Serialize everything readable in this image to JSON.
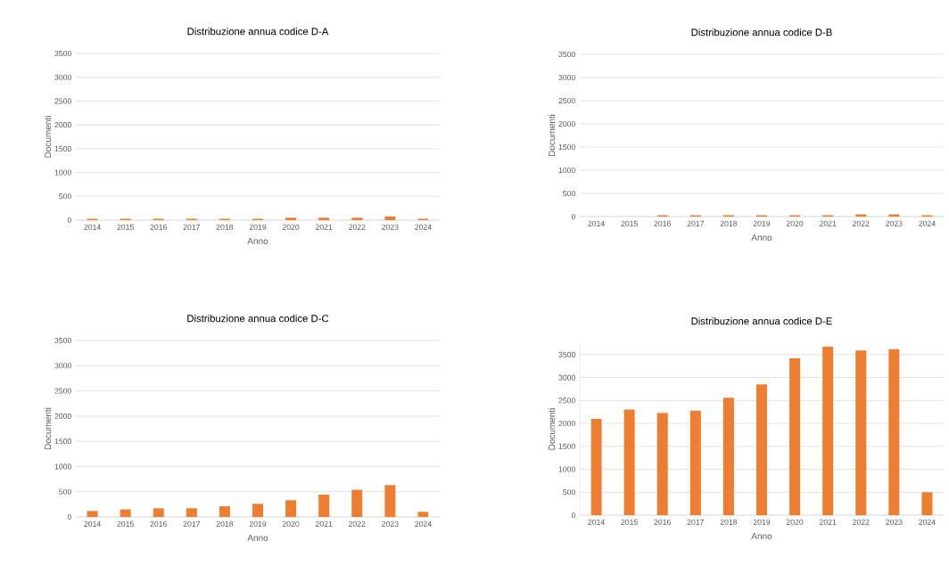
{
  "chart_data": [
    {
      "type": "bar",
      "title": "Distribuzione annua codice D-A",
      "xlabel": "Anno",
      "ylabel": "Documenti",
      "categories": [
        "2014",
        "2015",
        "2016",
        "2017",
        "2018",
        "2019",
        "2020",
        "2021",
        "2022",
        "2023",
        "2024"
      ],
      "values": [
        30,
        30,
        30,
        30,
        30,
        30,
        50,
        50,
        50,
        80,
        30
      ],
      "color": "#ed7d31",
      "ylim": [
        0,
        3500
      ],
      "yticks": [
        0,
        500,
        1000,
        1500,
        2000,
        2500,
        3000,
        3500
      ],
      "grid": "y"
    },
    {
      "type": "bar",
      "title": "Distribuzione annua codice D-B",
      "xlabel": "Anno",
      "ylabel": "Documenti",
      "categories": [
        "2014",
        "2015",
        "2016",
        "2017",
        "2018",
        "2019",
        "2020",
        "2021",
        "2022",
        "2023",
        "2024"
      ],
      "values": [
        0,
        0,
        30,
        30,
        30,
        30,
        30,
        30,
        50,
        50,
        30
      ],
      "color": "#ed7d31",
      "ylim": [
        0,
        3500
      ],
      "yticks": [
        0,
        500,
        1000,
        1500,
        2000,
        2500,
        3000,
        3500
      ],
      "grid": "y"
    },
    {
      "type": "bar",
      "title": "Distribuzione annua codice D-C",
      "xlabel": "Anno",
      "ylabel": "Documenti",
      "categories": [
        "2014",
        "2015",
        "2016",
        "2017",
        "2018",
        "2019",
        "2020",
        "2021",
        "2022",
        "2023",
        "2024"
      ],
      "values": [
        120,
        150,
        170,
        170,
        210,
        260,
        330,
        440,
        540,
        630,
        100
      ],
      "color": "#ed7d31",
      "ylim": [
        0,
        3500
      ],
      "yticks": [
        0,
        500,
        1000,
        1500,
        2000,
        2500,
        3000,
        3500
      ],
      "grid": "y"
    },
    {
      "type": "bar",
      "title": "Distribuzione annua codice D-E",
      "xlabel": "Anno",
      "ylabel": "Documenti",
      "categories": [
        "2014",
        "2015",
        "2016",
        "2017",
        "2018",
        "2019",
        "2020",
        "2021",
        "2022",
        "2023",
        "2024"
      ],
      "values": [
        2100,
        2300,
        2230,
        2280,
        2560,
        2850,
        3420,
        3670,
        3590,
        3620,
        500
      ],
      "color": "#ed7d31",
      "ylim": [
        0,
        3750
      ],
      "yticks": [
        0,
        500,
        1000,
        1500,
        2000,
        2500,
        3000,
        3500
      ],
      "grid": "y"
    }
  ]
}
